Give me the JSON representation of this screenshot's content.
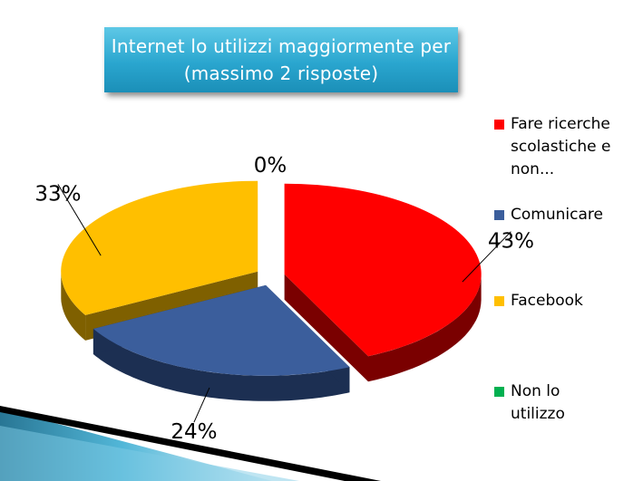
{
  "title": {
    "line1": "Internet lo utilizzi maggiormente per",
    "line2": "(massimo 2 risposte)"
  },
  "chart_data": {
    "type": "pie",
    "title": "Internet lo utilizzi maggiormente per (massimo 2 risposte)",
    "style": "3d-exploded",
    "legend_position": "right",
    "series": [
      {
        "name": "Fare ricerche scolastiche e non...",
        "legend_lines": [
          "Fare ricerche",
          "scolastiche e",
          "non..."
        ],
        "value": 43,
        "label": "43%",
        "color": "#ff0000",
        "side_color": "#7a0000"
      },
      {
        "name": "Comunicare",
        "legend_lines": [
          "Comunicare"
        ],
        "value": 24,
        "label": "24%",
        "color": "#3b5e9c",
        "side_color": "#1c2f52"
      },
      {
        "name": "Facebook",
        "legend_lines": [
          "Facebook"
        ],
        "value": 33,
        "label": "33%",
        "color": "#ffbf00",
        "side_color": "#7f6000"
      },
      {
        "name": "Non lo utilizzo",
        "legend_lines": [
          "Non lo",
          "utilizzo"
        ],
        "value": 0,
        "label": "0%",
        "color": "#00b050",
        "side_color": "#005a28"
      }
    ]
  }
}
